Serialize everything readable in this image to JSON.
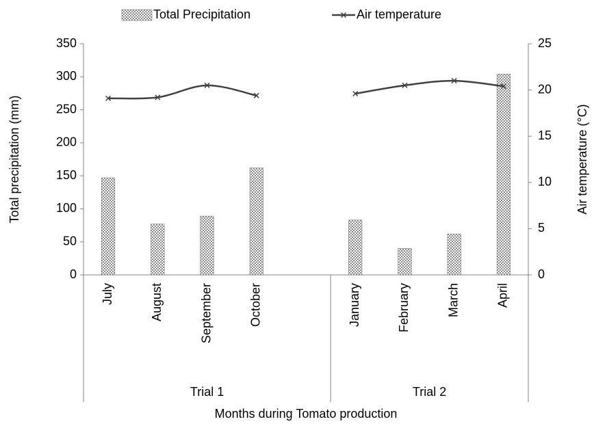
{
  "chart_data": {
    "type": "bar_line",
    "x_label": "Months during Tomato production",
    "y_label": "Total precipitation (mm)",
    "y2_label": "Air temperature (°C)",
    "categories": [
      "July",
      "August",
      "September",
      "October",
      null,
      "January",
      "February",
      "March",
      "April"
    ],
    "groups": [
      {
        "name": "Trial 1",
        "size": 5
      },
      {
        "name": "Trial 2",
        "size": 4
      }
    ],
    "series": [
      {
        "name": "Total Precipitation",
        "type": "bar",
        "color": "#8c8c8c",
        "values": [
          147,
          77,
          89,
          162,
          null,
          83,
          40,
          62,
          304
        ]
      },
      {
        "name": "Air temperature",
        "type": "line",
        "axis": "y2",
        "color": "#404040",
        "values": [
          19.1,
          19.2,
          20.5,
          19.4,
          null,
          19.6,
          20.5,
          21.0,
          20.4
        ]
      }
    ],
    "ylim": [
      0,
      350
    ],
    "yticks": [
      0,
      50,
      100,
      150,
      200,
      250,
      300,
      350
    ],
    "y2lim": [
      0,
      25
    ],
    "y2ticks": [
      0,
      5,
      10,
      15,
      20,
      25
    ],
    "legend": "top"
  }
}
